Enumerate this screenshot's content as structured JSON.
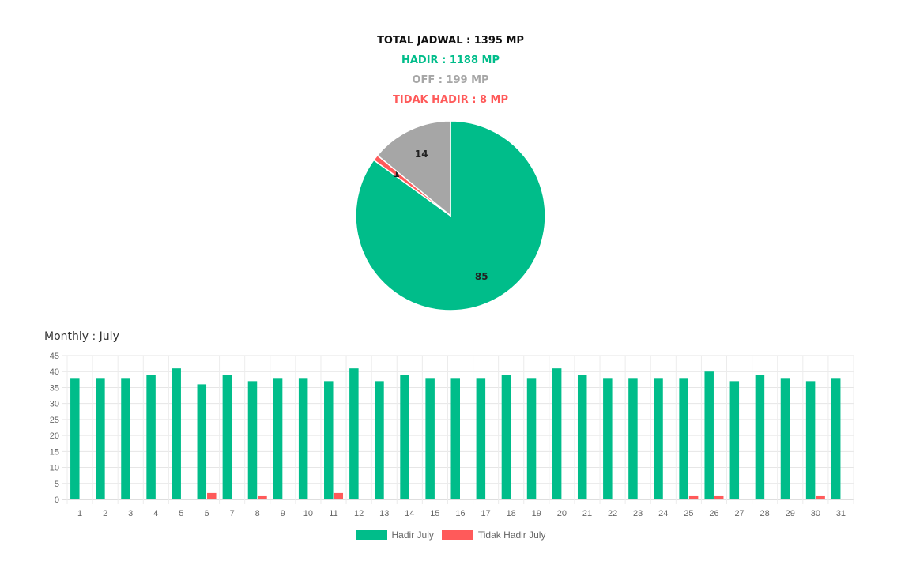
{
  "summary": {
    "total": "TOTAL JADWAL : 1395 MP",
    "hadir": "HADIR : 1188 MP",
    "off": "OFF : 199 MP",
    "tidak_hadir": "TIDAK HADIR : 8 MP"
  },
  "colors": {
    "hadir": "#00bd8a",
    "off": "#a6a6a6",
    "tidak_hadir": "#ff5a5a"
  },
  "monthly_title": "Monthly : July",
  "chart_data": [
    {
      "type": "pie",
      "slices": [
        {
          "label": "85",
          "value": 85,
          "color": "#00bd8a"
        },
        {
          "label": "1",
          "value": 1,
          "color": "#ff5a5a"
        },
        {
          "label": "14",
          "value": 14,
          "color": "#a6a6a6"
        }
      ]
    },
    {
      "type": "bar",
      "title": "Monthly : July",
      "categories": [
        "1",
        "2",
        "3",
        "4",
        "5",
        "6",
        "7",
        "8",
        "9",
        "10",
        "11",
        "12",
        "13",
        "14",
        "15",
        "16",
        "17",
        "18",
        "19",
        "20",
        "21",
        "22",
        "23",
        "24",
        "25",
        "26",
        "27",
        "28",
        "29",
        "30",
        "31"
      ],
      "series": [
        {
          "name": "Hadir July",
          "color": "#00bd8a",
          "values": [
            38,
            38,
            38,
            39,
            41,
            36,
            39,
            37,
            38,
            38,
            37,
            41,
            37,
            39,
            38,
            38,
            38,
            39,
            38,
            41,
            39,
            38,
            38,
            38,
            38,
            40,
            37,
            39,
            38,
            37,
            38
          ]
        },
        {
          "name": "Tidak Hadir July",
          "color": "#ff5a5a",
          "values": [
            0,
            0,
            0,
            0,
            0,
            2,
            0,
            1,
            0,
            0,
            2,
            0,
            0,
            0,
            0,
            0,
            0,
            0,
            0,
            0,
            0,
            0,
            0,
            0,
            1,
            1,
            0,
            0,
            0,
            1,
            0
          ]
        }
      ],
      "ylim": [
        0,
        45
      ],
      "yticks": [
        "0",
        "5",
        "10",
        "15",
        "20",
        "25",
        "30",
        "35",
        "40",
        "45"
      ],
      "grid": true,
      "legend": "bottom-center"
    }
  ]
}
